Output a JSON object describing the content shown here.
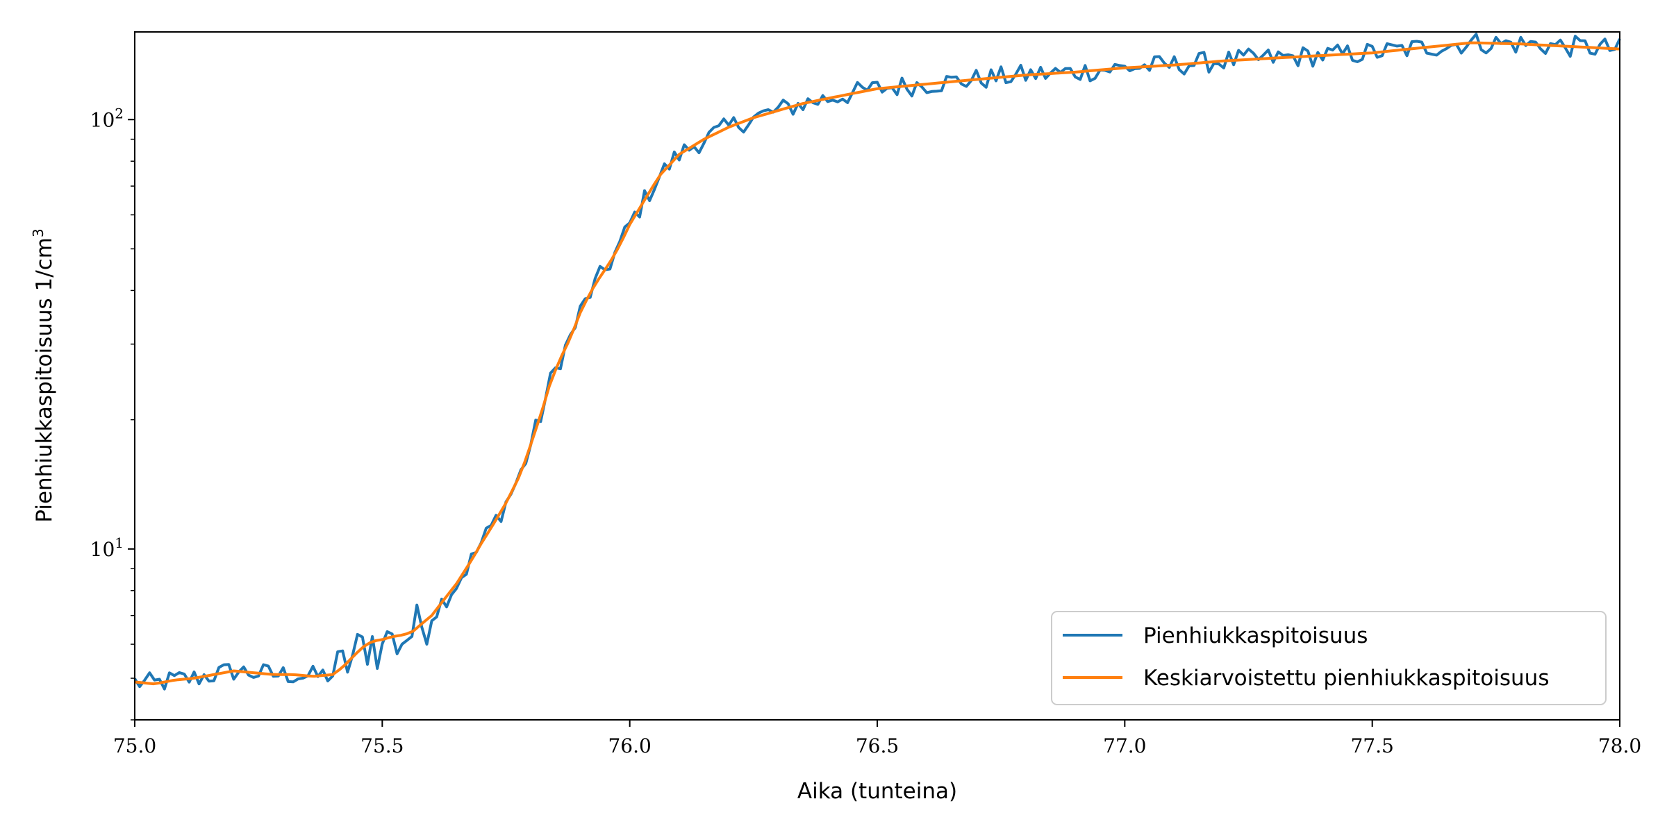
{
  "chart_data": {
    "type": "line",
    "xlabel": "Aika (tunteina)",
    "ylabel": "Pienhiukkaspitoisuus 1/cm",
    "ylabel_superscript": "3",
    "xlim": [
      75.0,
      78.0
    ],
    "ylim": [
      4.0,
      160.0
    ],
    "yscale": "log",
    "x_ticks": [
      "75.0",
      "75.5",
      "76.0",
      "76.5",
      "77.0",
      "77.5",
      "78.0"
    ],
    "y_ticks": [
      {
        "base": "10",
        "exp": "1",
        "value": 10
      },
      {
        "base": "10",
        "exp": "2",
        "value": 100
      }
    ],
    "grid": false,
    "legend_position": "lower right",
    "series": [
      {
        "name": "Pienhiukkaspitoisuus",
        "color": "#1f77b4",
        "noisy": true,
        "x": [
          75.0,
          75.04,
          75.08,
          75.12,
          75.16,
          75.2,
          75.24,
          75.28,
          75.32,
          75.36,
          75.4,
          75.42,
          75.44,
          75.46,
          75.48,
          75.5,
          75.51,
          75.52,
          75.54,
          75.56,
          75.58,
          75.6,
          75.62,
          75.65,
          75.68,
          75.7,
          75.72,
          75.75,
          75.78,
          75.8,
          75.82,
          75.84,
          75.86,
          75.88,
          75.9,
          75.92,
          75.94,
          75.96,
          75.98,
          76.0,
          76.03,
          76.06,
          76.1,
          76.15,
          76.2,
          76.25,
          76.3,
          76.35,
          76.4,
          76.45,
          76.5,
          76.6,
          76.7,
          76.8,
          76.9,
          77.0,
          77.1,
          77.2,
          77.3,
          77.4,
          77.5,
          77.6,
          77.7,
          77.8,
          77.9,
          78.0
        ],
        "values": [
          4.9,
          4.85,
          4.95,
          5.0,
          5.1,
          5.2,
          5.15,
          5.1,
          5.1,
          5.05,
          5.1,
          5.3,
          5.6,
          5.9,
          6.1,
          5.7,
          6.6,
          6.0,
          6.2,
          6.4,
          6.7,
          7.0,
          7.5,
          8.3,
          9.4,
          10.3,
          11.2,
          12.8,
          15.0,
          17.5,
          20.5,
          24.5,
          27.8,
          31.0,
          35.5,
          39.5,
          43.0,
          46.5,
          51.0,
          57.0,
          65.0,
          74.0,
          83.0,
          90.0,
          96.0,
          101.0,
          105.0,
          109.0,
          112.0,
          115.0,
          118.0,
          121.0,
          124.0,
          127.0,
          129.0,
          132.0,
          134.0,
          137.0,
          139.0,
          141.0,
          143.0,
          147.0,
          151.0,
          150.0,
          148.0,
          146.0
        ]
      },
      {
        "name": "Keskiarvoistettu pienhiukkaspitoisuus",
        "color": "#ff7f0e",
        "noisy": false,
        "x": [
          75.0,
          75.04,
          75.08,
          75.12,
          75.16,
          75.2,
          75.24,
          75.28,
          75.32,
          75.36,
          75.4,
          75.42,
          75.44,
          75.46,
          75.48,
          75.5,
          75.51,
          75.52,
          75.54,
          75.56,
          75.58,
          75.6,
          75.62,
          75.65,
          75.68,
          75.7,
          75.72,
          75.75,
          75.78,
          75.8,
          75.82,
          75.84,
          75.86,
          75.88,
          75.9,
          75.92,
          75.94,
          75.96,
          75.98,
          76.0,
          76.03,
          76.06,
          76.1,
          76.15,
          76.2,
          76.25,
          76.3,
          76.35,
          76.4,
          76.45,
          76.5,
          76.6,
          76.7,
          76.8,
          76.9,
          77.0,
          77.1,
          77.2,
          77.3,
          77.4,
          77.5,
          77.6,
          77.7,
          77.8,
          77.9,
          78.0
        ],
        "values": [
          4.9,
          4.85,
          4.95,
          5.0,
          5.1,
          5.2,
          5.15,
          5.1,
          5.1,
          5.05,
          5.1,
          5.3,
          5.6,
          5.9,
          6.1,
          6.15,
          6.2,
          6.25,
          6.3,
          6.4,
          6.7,
          7.0,
          7.5,
          8.3,
          9.4,
          10.3,
          11.2,
          12.8,
          15.0,
          17.5,
          20.5,
          24.5,
          27.8,
          31.0,
          35.5,
          39.5,
          43.0,
          46.5,
          51.0,
          57.0,
          65.0,
          74.0,
          83.0,
          90.0,
          96.0,
          101.0,
          105.0,
          109.0,
          112.0,
          115.0,
          118.0,
          121.0,
          124.0,
          127.0,
          129.0,
          132.0,
          134.0,
          137.0,
          139.0,
          141.0,
          143.0,
          147.0,
          151.0,
          150.0,
          148.0,
          146.0
        ]
      }
    ]
  }
}
